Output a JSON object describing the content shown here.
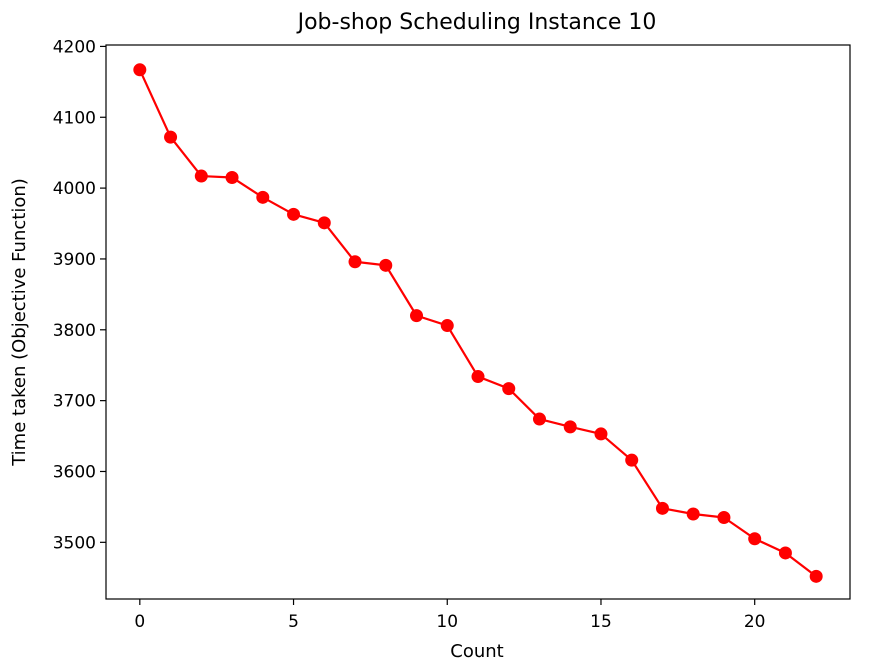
{
  "chart_data": {
    "type": "line",
    "title": "Job-shop Scheduling Instance 10",
    "xlabel": "Count",
    "ylabel": "Time taken (Objective Function)",
    "xlim": [
      -1.1,
      23.1
    ],
    "ylim": [
      3420,
      4202
    ],
    "grid": false,
    "x_ticks": [
      0,
      5,
      10,
      15,
      20
    ],
    "y_ticks": [
      3500,
      3600,
      3700,
      3800,
      3900,
      4000,
      4100,
      4200
    ],
    "series": [
      {
        "name": "objective",
        "color": "#ff0000",
        "marker": "circle",
        "x": [
          0,
          1,
          2,
          3,
          4,
          5,
          6,
          7,
          8,
          9,
          10,
          11,
          12,
          13,
          14,
          15,
          16,
          17,
          18,
          19,
          20,
          21,
          22
        ],
        "values": [
          4167,
          4072,
          4017,
          4015,
          3987,
          3963,
          3951,
          3896,
          3891,
          3820,
          3806,
          3734,
          3717,
          3674,
          3663,
          3653,
          3616,
          3548,
          3540,
          3535,
          3505,
          3485,
          3452
        ]
      }
    ]
  }
}
